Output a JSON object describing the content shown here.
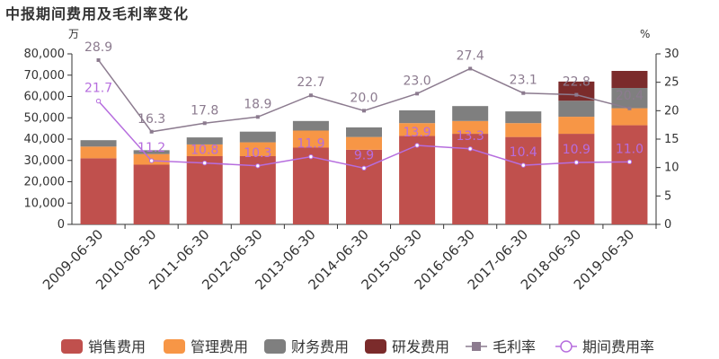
{
  "chart_data": {
    "type": "bar",
    "title": "中报期间费用及毛利率变化",
    "left_axis_unit": "万",
    "right_axis_unit": "%",
    "ylim_left": [
      0,
      80000
    ],
    "ylim_right": [
      0,
      30
    ],
    "left_ticks": [
      "0",
      "10,000",
      "20,000",
      "30,000",
      "40,000",
      "50,000",
      "60,000",
      "70,000",
      "80,000"
    ],
    "right_ticks": [
      "0",
      "5",
      "10",
      "15",
      "20",
      "25",
      "30"
    ],
    "categories": [
      "2009-06-30",
      "2010-06-30",
      "2011-06-30",
      "2012-06-30",
      "2013-06-30",
      "2014-06-30",
      "2015-06-30",
      "2016-06-30",
      "2017-06-30",
      "2018-06-30",
      "2019-06-30"
    ],
    "stacked_series": [
      {
        "name": "销售费用",
        "color": "#c0504d",
        "values": [
          31000,
          28000,
          32000,
          32000,
          36000,
          35000,
          41500,
          42500,
          41000,
          42500,
          46500
        ]
      },
      {
        "name": "管理费用",
        "color": "#f79646",
        "values": [
          5500,
          5000,
          5500,
          6500,
          8000,
          6000,
          6000,
          6000,
          6500,
          8000,
          8000
        ]
      },
      {
        "name": "财务费用",
        "color": "#7f7f7f",
        "values": [
          3000,
          1800,
          3300,
          5000,
          4500,
          4500,
          6000,
          7000,
          5500,
          7500,
          9500
        ]
      },
      {
        "name": "研发费用",
        "color": "#7b2b2b",
        "values": [
          0,
          0,
          0,
          0,
          0,
          0,
          0,
          0,
          0,
          9000,
          8000
        ]
      }
    ],
    "line_series": [
      {
        "name": "毛利率",
        "color": "#8c7b8f",
        "marker": "square",
        "values": [
          28.9,
          16.3,
          17.8,
          18.9,
          22.7,
          20.0,
          23.0,
          27.4,
          23.1,
          22.8,
          20.4
        ]
      },
      {
        "name": "期间费用率",
        "color": "#b66dde",
        "marker": "circle",
        "values": [
          21.7,
          11.2,
          10.8,
          10.3,
          11.9,
          9.9,
          13.9,
          13.3,
          10.4,
          10.9,
          11.0
        ]
      }
    ],
    "legend": [
      "销售费用",
      "管理费用",
      "财务费用",
      "研发费用",
      "毛利率",
      "期间费用率"
    ]
  }
}
